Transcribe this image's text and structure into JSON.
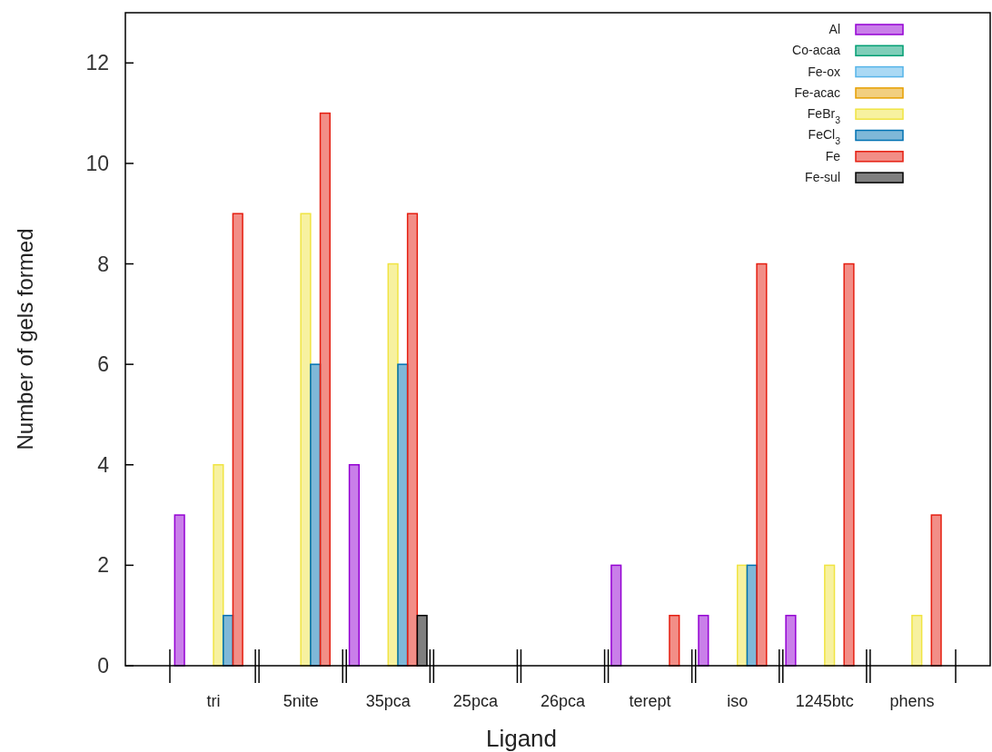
{
  "chart_data": {
    "type": "bar",
    "xlabel": "Ligand",
    "ylabel": "Number of gels formed",
    "categories": [
      "tri",
      "5nite",
      "35pca",
      "25pca",
      "26pca",
      "terept",
      "iso",
      "1245btc",
      "phens"
    ],
    "series": [
      {
        "name": "Al",
        "color": "#9400d3",
        "values": [
          3,
          0,
          4,
          0,
          0,
          2,
          1,
          1,
          0
        ]
      },
      {
        "name": "Co-acaa",
        "color": "#009e73",
        "values": [
          0,
          0,
          0,
          0,
          0,
          0,
          0,
          0,
          0
        ]
      },
      {
        "name": "Fe-ox",
        "color": "#56b4e9",
        "values": [
          0,
          0,
          0,
          0,
          0,
          0,
          0,
          0,
          0
        ]
      },
      {
        "name": "Fe-acac",
        "color": "#e69f00",
        "values": [
          0,
          0,
          0,
          0,
          0,
          0,
          0,
          0,
          0
        ]
      },
      {
        "name": "FeBr$_{3}$",
        "color": "#f0e442",
        "values": [
          4,
          9,
          8,
          0,
          0,
          0,
          2,
          2,
          1
        ]
      },
      {
        "name": "FeCl$_{3}$",
        "color": "#0072b2",
        "values": [
          1,
          6,
          6,
          0,
          0,
          0,
          2,
          0,
          0
        ]
      },
      {
        "name": "Fe",
        "color": "#e51e10",
        "values": [
          9,
          11,
          9,
          0,
          0,
          1,
          8,
          8,
          3
        ]
      },
      {
        "name": "Fe-sul",
        "color": "#000000",
        "values": [
          0,
          0,
          1,
          0,
          0,
          0,
          0,
          0,
          0
        ]
      }
    ],
    "ylim": [
      0,
      13
    ],
    "yticks": [
      0,
      2,
      4,
      6,
      8,
      10,
      12
    ],
    "grid": false,
    "legend": "top right"
  }
}
